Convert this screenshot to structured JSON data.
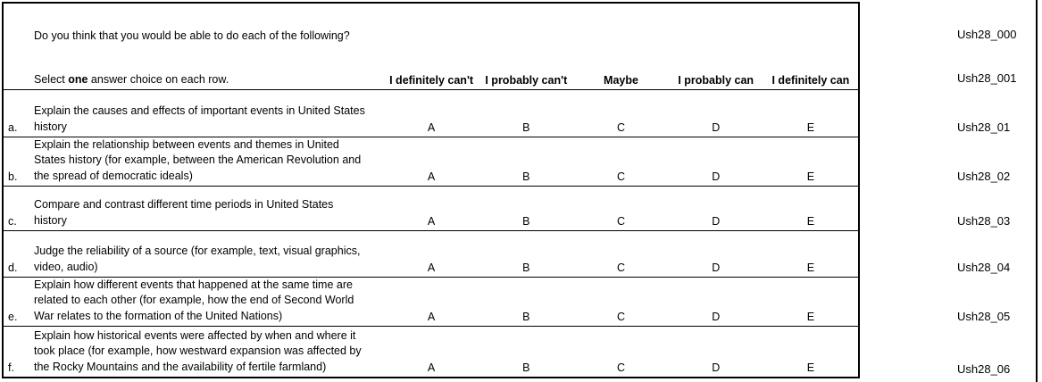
{
  "survey": {
    "question": "Do you think that you would be able to do each of the following?",
    "instruction": {
      "prefix": "Select ",
      "bold": "one",
      "suffix": " answer choice on each row."
    },
    "column_headers": [
      "I definitely can't",
      "I probably can't",
      "Maybe",
      "I probably can",
      "I definitely can"
    ],
    "choice_letters": [
      "A",
      "B",
      "C",
      "D",
      "E"
    ],
    "header_codes": [
      "Ush28_000",
      "Ush28_001"
    ],
    "rows": [
      {
        "letter": "a.",
        "lines": [
          "Explain the causes and effects of important events in United States",
          "history"
        ],
        "code": "Ush28_01"
      },
      {
        "letter": "b.",
        "lines": [
          "Explain the relationship between events and themes in United",
          "States history (for example, between the American Revolution and",
          "the spread of democratic ideals)"
        ],
        "code": "Ush28_02"
      },
      {
        "letter": "c.",
        "lines": [
          "Compare and contrast different time periods in United States",
          "history"
        ],
        "code": "Ush28_03"
      },
      {
        "letter": "d.",
        "lines": [
          "Judge the reliability of a source (for example, text, visual graphics,",
          "video, audio)"
        ],
        "code": "Ush28_04"
      },
      {
        "letter": "e.",
        "lines": [
          "Explain how different events that happened at the same time are",
          "related to each other (for example, how the end of Second World",
          "War relates to the formation of the United Nations)"
        ],
        "code": "Ush28_05"
      },
      {
        "letter": "f.",
        "lines": [
          "Explain how historical events were affected by when and where it",
          "took place (for example, how westward expansion was affected by",
          "the Rocky Mountains and the availability of fertile farmland)"
        ],
        "code": "Ush28_06"
      }
    ],
    "colors": {
      "border": "#000000",
      "text": "#000000",
      "background": "#ffffff"
    }
  }
}
